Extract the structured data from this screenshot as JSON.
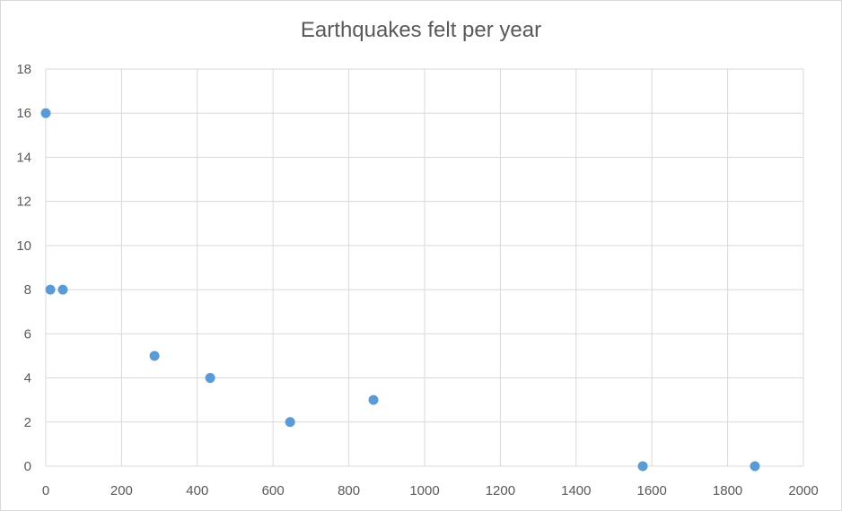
{
  "chart_data": {
    "type": "scatter",
    "title": "Earthquakes felt per year",
    "xlabel": "",
    "ylabel": "",
    "xlim": [
      0,
      2000
    ],
    "ylim": [
      0,
      18
    ],
    "xticks": [
      0,
      200,
      400,
      600,
      800,
      1000,
      1200,
      1400,
      1600,
      1800,
      2000
    ],
    "yticks": [
      0,
      2,
      4,
      6,
      8,
      10,
      12,
      14,
      16,
      18
    ],
    "grid": true,
    "legend": "none",
    "series": [
      {
        "name": "Series1",
        "color": "#5b9bd5",
        "points": [
          {
            "x": 0,
            "y": 16
          },
          {
            "x": 12,
            "y": 8
          },
          {
            "x": 45,
            "y": 8
          },
          {
            "x": 287,
            "y": 5
          },
          {
            "x": 434,
            "y": 4
          },
          {
            "x": 645,
            "y": 2
          },
          {
            "x": 865,
            "y": 3
          },
          {
            "x": 1576,
            "y": 0
          },
          {
            "x": 1872,
            "y": 0
          }
        ]
      }
    ]
  }
}
